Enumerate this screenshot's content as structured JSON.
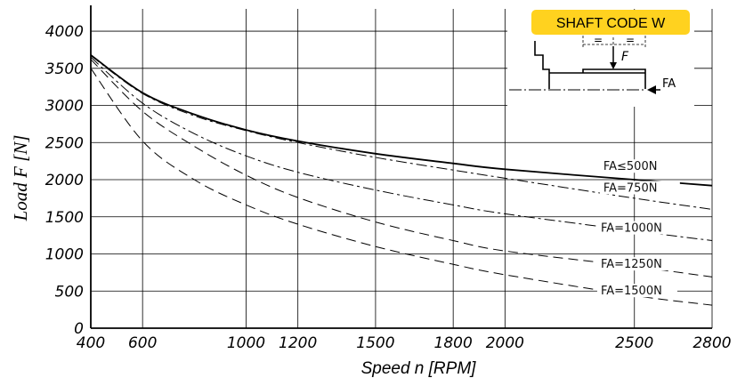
{
  "chart_data": {
    "type": "line",
    "xlabel": "Speed n [RPM]",
    "ylabel": "Load F [N]",
    "xlim": [
      400,
      2800
    ],
    "ylim": [
      0,
      4300
    ],
    "x_ticks": [
      400,
      600,
      1000,
      1200,
      1500,
      1800,
      2000,
      2500,
      2800
    ],
    "x_tick_labels": [
      "400",
      "600",
      "1000",
      "1200",
      "1500",
      "1800",
      "2000",
      "2500",
      "2800"
    ],
    "y_ticks": [
      0,
      500,
      1000,
      1500,
      2000,
      2500,
      3000,
      3500,
      4000
    ],
    "y_tick_labels": [
      "0",
      "500",
      "1000",
      "1500",
      "2000",
      "2500",
      "3000",
      "3500",
      "4000"
    ],
    "grid": true,
    "series": [
      {
        "name": "FA≤500N",
        "style": "solid",
        "x": [
          400,
          600,
          800,
          1000,
          1200,
          1500,
          1800,
          2000,
          2500,
          2800
        ],
        "y": [
          3680,
          3170,
          2880,
          2670,
          2520,
          2350,
          2220,
          2140,
          2000,
          1920
        ]
      },
      {
        "name": "FA=750N",
        "style": "dashdot",
        "x": [
          400,
          600,
          800,
          1000,
          1200,
          1500,
          1800,
          2000,
          2500,
          2800
        ],
        "y": [
          3670,
          3160,
          2860,
          2660,
          2500,
          2300,
          2130,
          2020,
          1750,
          1600
        ]
      },
      {
        "name": "FA=1000N",
        "style": "dashdot",
        "x": [
          400,
          600,
          800,
          1000,
          1200,
          1500,
          1800,
          2000,
          2500,
          2800
        ],
        "y": [
          3650,
          3030,
          2620,
          2320,
          2100,
          1860,
          1660,
          1540,
          1310,
          1180
        ]
      },
      {
        "name": "FA=1250N",
        "style": "dashed",
        "x": [
          400,
          600,
          800,
          1000,
          1200,
          1500,
          1800,
          2000,
          2500,
          2800
        ],
        "y": [
          3620,
          2920,
          2450,
          2060,
          1760,
          1430,
          1180,
          1040,
          830,
          690
        ]
      },
      {
        "name": "FA=1500N",
        "style": "dashed",
        "x": [
          400,
          600,
          800,
          1000,
          1200,
          1500,
          1800,
          2000,
          2500,
          2800
        ],
        "y": [
          3500,
          2520,
          2000,
          1660,
          1400,
          1100,
          860,
          720,
          440,
          310
        ]
      }
    ],
    "inset": {
      "title": "SHAFT CODE W",
      "title_bg": "#ffd21f",
      "force_label": "F",
      "axial_label": "FA",
      "equal_mark": "="
    },
    "line_color": "#000000",
    "grid_color": "#000000"
  }
}
